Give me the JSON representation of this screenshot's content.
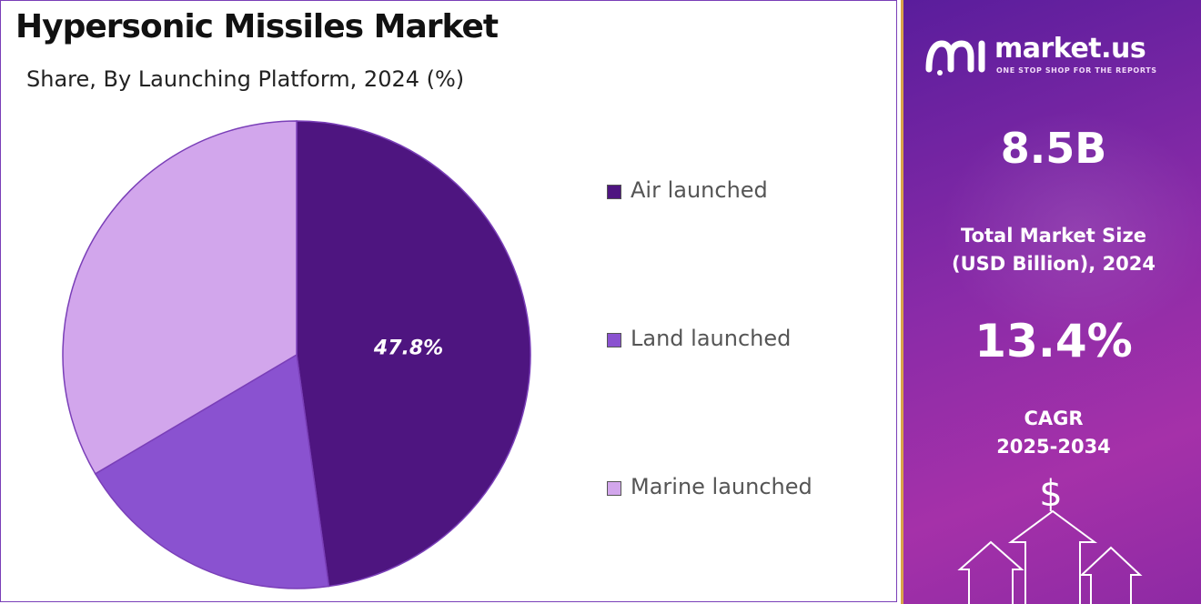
{
  "title": "Hypersonic Missiles Market",
  "subtitle": "Share, By Launching Platform, 2024 (%)",
  "chart_data": {
    "type": "pie",
    "title": "Hypersonic Missiles Market",
    "subtitle": "Share, By Launching Platform, 2024 (%)",
    "slices": [
      {
        "name": "Air launched",
        "value": 47.8,
        "color": "#4e1580",
        "label": "47.8%"
      },
      {
        "name": "Land launched",
        "value": 18.7,
        "color": "#8a52d0",
        "label": ""
      },
      {
        "name": "Marine launched",
        "value": 33.5,
        "color": "#d2a6ec",
        "label": ""
      }
    ],
    "start_angle_deg": 0,
    "direction": "clockwise",
    "legend_position": "right"
  },
  "brand": {
    "name": "market.us",
    "tagline": "ONE STOP SHOP FOR THE REPORTS"
  },
  "stats": {
    "market_size_value": "8.5B",
    "market_size_label_line1": "Total Market Size",
    "market_size_label_line2": "(USD Billion), 2024",
    "cagr_value": "13.4%",
    "cagr_label_line1": "CAGR",
    "cagr_label_line2": "2025-2034"
  },
  "decor": {
    "dollar_symbol": "$"
  },
  "colors": {
    "panel_start": "#5a1d9c",
    "panel_end": "#a531a9",
    "panel_border": "#d9a34a",
    "frame_border": "#7a3fb8"
  }
}
